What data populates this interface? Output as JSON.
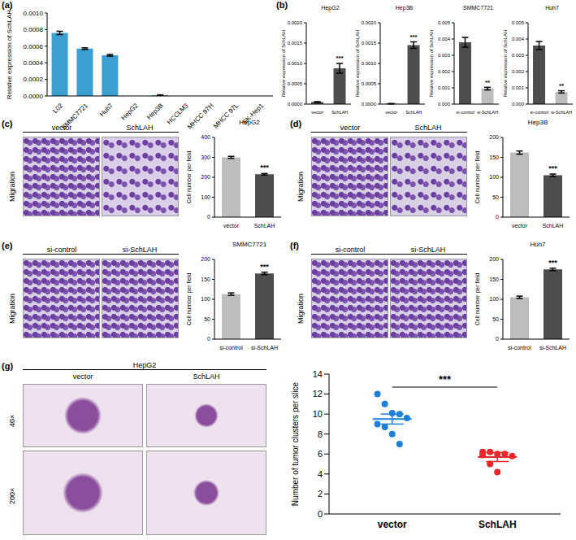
{
  "chart_data": [
    {
      "label": "(a)",
      "type": "bar",
      "y_label": "Relative expression of SchLAH",
      "categories": [
        "L02",
        "SMMC7721",
        "Huh7",
        "HepG2",
        "Hep3B",
        "HCCLM3",
        "MHCC 97H",
        "MHCC 97L",
        "SK-Hep1"
      ],
      "values": [
        0.00076,
        0.00057,
        0.00049,
        0.0,
        1e-05,
        0.0,
        0.0,
        0.0,
        0.0
      ],
      "errors": [
        2e-05,
        1e-05,
        1e-05,
        0.0,
        3e-06,
        0.0,
        0.0,
        0.0,
        0.0
      ],
      "color": "#3b9fd1",
      "ylim": [
        0,
        0.001
      ],
      "yticks": [
        {
          "value": 0,
          "label": "0.0000"
        },
        {
          "value": 0.0002,
          "label": "0.0002"
        },
        {
          "value": 0.0004,
          "label": "0.0004"
        },
        {
          "value": 0.0006,
          "label": "0.0006"
        },
        {
          "value": 0.0008,
          "label": "0.0008"
        },
        {
          "value": 0.001,
          "label": "0.0010"
        }
      ]
    },
    {
      "label": "(b)",
      "type": "bar",
      "title": "HepG2",
      "y_label": "Relative expression of SchLAH",
      "categories": [
        "vector",
        "SchLAH"
      ],
      "values": [
        5e-05,
        0.00088
      ],
      "errors": [
        1e-05,
        0.00012
      ],
      "colors": [
        "#4d4d4d",
        "#4d4d4d"
      ],
      "ylim": [
        0,
        0.002
      ],
      "yticks": [
        {
          "value": 0,
          "label": "0.0000"
        },
        {
          "value": 0.0005,
          "label": "0.0005"
        },
        {
          "value": 0.001,
          "label": "0.0010"
        },
        {
          "value": 0.0015,
          "label": "0.0015"
        },
        {
          "value": 0.002,
          "label": "0.0020"
        }
      ],
      "annotations": [
        "***"
      ]
    },
    {
      "type": "bar",
      "title": "Hep3B",
      "y_label": "Relative expression of SchLAH",
      "categories": [
        "vector",
        "SchLAH"
      ],
      "values": [
        1e-05,
        0.00145
      ],
      "errors": [
        5e-06,
        8e-05
      ],
      "colors": [
        "#4d4d4d",
        "#4d4d4d"
      ],
      "ylim": [
        0,
        0.002
      ],
      "yticks": [
        {
          "value": 0,
          "label": "0.0000"
        },
        {
          "value": 0.0005,
          "label": "0.0005"
        },
        {
          "value": 0.001,
          "label": "0.0010"
        },
        {
          "value": 0.0015,
          "label": "0.0015"
        },
        {
          "value": 0.002,
          "label": "0.0020"
        }
      ],
      "annotations": [
        "***"
      ]
    },
    {
      "type": "bar",
      "title": "SMMC7721",
      "y_label": "Relative expression of SchLAH",
      "categories": [
        "si-control",
        "si-SchLAH"
      ],
      "values": [
        0.0038,
        0.00095
      ],
      "errors": [
        0.0003,
        8e-05
      ],
      "colors": [
        "#4d4d4d",
        "#bdbdbd"
      ],
      "ylim": [
        0,
        0.005
      ],
      "yticks": [
        {
          "value": 0,
          "label": "0.000"
        },
        {
          "value": 0.001,
          "label": "0.001"
        },
        {
          "value": 0.002,
          "label": "0.002"
        },
        {
          "value": 0.003,
          "label": "0.003"
        },
        {
          "value": 0.004,
          "label": "0.004"
        },
        {
          "value": 0.005,
          "label": "0.005"
        }
      ],
      "annotations": [
        "**"
      ]
    },
    {
      "type": "bar",
      "title": "Huh7",
      "y_label": "Relative expression of SchLAH",
      "categories": [
        "si-control",
        "si-SchLAH"
      ],
      "values": [
        0.0036,
        0.00075
      ],
      "errors": [
        0.00025,
        7e-05
      ],
      "colors": [
        "#4d4d4d",
        "#bdbdbd"
      ],
      "ylim": [
        0,
        0.005
      ],
      "yticks": [
        {
          "value": 0,
          "label": "0.000"
        },
        {
          "value": 0.001,
          "label": "0.001"
        },
        {
          "value": 0.002,
          "label": "0.002"
        },
        {
          "value": 0.003,
          "label": "0.003"
        },
        {
          "value": 0.004,
          "label": "0.004"
        },
        {
          "value": 0.005,
          "label": "0.005"
        }
      ],
      "annotations": [
        "**"
      ]
    },
    {
      "label": "(c)",
      "type": "bar",
      "image_columns": [
        "vector",
        "SchLAH"
      ],
      "image_row": "Migration",
      "title": "HepG2",
      "y_label": "Cell number per field",
      "categories": [
        "vector",
        "SchLAH"
      ],
      "values": [
        300,
        215
      ],
      "errors": [
        5,
        4
      ],
      "colors": [
        "#bdbdbd",
        "#4d4d4d"
      ],
      "ylim": [
        0,
        400
      ],
      "yticks": [
        0,
        100,
        200,
        300,
        400
      ],
      "annotations": [
        "***"
      ]
    },
    {
      "label": "(d)",
      "type": "bar",
      "image_columns": [
        "vector",
        "SchLAH"
      ],
      "image_row": "Migration",
      "title": "Hep3B",
      "y_label": "Cell number per field",
      "categories": [
        "vector",
        "SchLAH"
      ],
      "values": [
        162,
        105
      ],
      "errors": [
        4,
        3
      ],
      "colors": [
        "#bdbdbd",
        "#4d4d4d"
      ],
      "ylim": [
        0,
        200
      ],
      "yticks": [
        0,
        50,
        100,
        150,
        200
      ],
      "annotations": [
        "***"
      ]
    },
    {
      "label": "(e)",
      "type": "bar",
      "image_columns": [
        "si-control",
        "si-SchLAH"
      ],
      "image_row": "Migration",
      "title": "SMMC7721",
      "y_label": "Cell number per field",
      "categories": [
        "si-control",
        "si-SchLAH"
      ],
      "values": [
        113,
        165
      ],
      "errors": [
        3,
        3
      ],
      "colors": [
        "#bdbdbd",
        "#4d4d4d"
      ],
      "ylim": [
        0,
        200
      ],
      "yticks": [
        0,
        50,
        100,
        150,
        200
      ],
      "annotations": [
        "***"
      ]
    },
    {
      "label": "(f)",
      "type": "bar",
      "image_columns": [
        "si-control",
        "si-SchLAH"
      ],
      "image_row": "Migration",
      "title": "Huh7",
      "y_label": "Cell number per field",
      "categories": [
        "si-control",
        "si-SchLAH"
      ],
      "values": [
        105,
        175
      ],
      "errors": [
        3,
        3
      ],
      "colors": [
        "#bdbdbd",
        "#4d4d4d"
      ],
      "ylim": [
        0,
        200
      ],
      "yticks": [
        0,
        50,
        100,
        150,
        200
      ],
      "annotations": [
        "***"
      ]
    },
    {
      "label": "(g)",
      "type": "scatter",
      "image_title": "HepG2",
      "image_columns": [
        "vector",
        "SchLAH"
      ],
      "image_rows": [
        "40×",
        "200×"
      ],
      "y_label": "Number of tumor clusters per slice",
      "categories": [
        "vector",
        "SchLAH"
      ],
      "values": [
        [
          12,
          11,
          10.1,
          10,
          9.6,
          9,
          8.7,
          8,
          7
        ],
        [
          6.2,
          6.2,
          6,
          6,
          5.8,
          5.9,
          5,
          4.2
        ]
      ],
      "colors": [
        "#1e7fd8",
        "#e8282b"
      ],
      "means": [
        9.5,
        5.7
      ],
      "errors": [
        0.5,
        0.45
      ],
      "ylim": [
        0,
        14
      ],
      "yticks": [
        0,
        2,
        4,
        6,
        8,
        10,
        12,
        14
      ],
      "annotations": [
        "***"
      ]
    }
  ]
}
